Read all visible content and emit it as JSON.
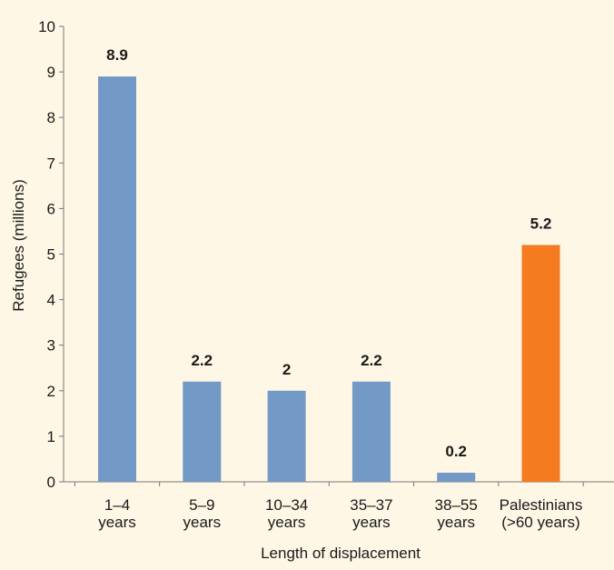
{
  "chart_data": {
    "type": "bar",
    "title": "",
    "xlabel": "Length of displacement",
    "ylabel": "Refugees (millions)",
    "ylim": [
      0,
      10
    ],
    "yticks": [
      0,
      1,
      2,
      3,
      4,
      5,
      6,
      7,
      8,
      9,
      10
    ],
    "grid": false,
    "categories": [
      [
        "1–4",
        "years"
      ],
      [
        "5–9",
        "years"
      ],
      [
        "10–34",
        "years"
      ],
      [
        "35–37",
        "years"
      ],
      [
        "38–55",
        "years"
      ],
      [
        "Palestinians",
        "(>60 years)"
      ]
    ],
    "values": [
      8.9,
      2.2,
      2.0,
      2.2,
      0.2,
      5.2
    ],
    "value_labels": [
      "8.9",
      "2.2",
      "2",
      "2.2",
      "0.2",
      "5.2"
    ],
    "bar_colors": [
      "#7399c6",
      "#7399c6",
      "#7399c6",
      "#7399c6",
      "#7399c6",
      "#f47b20"
    ]
  },
  "colors": {
    "background": "#fef7e5",
    "axis": "#777777",
    "text": "#1a1a1a"
  }
}
